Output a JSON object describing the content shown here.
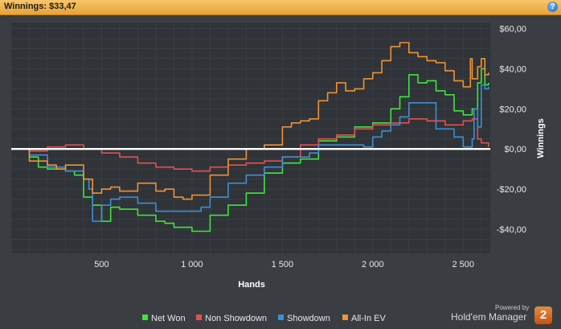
{
  "header": {
    "title": "Winnings: $33,47",
    "help_icon": "help-icon",
    "help_glyph": "?"
  },
  "brand": {
    "powered": "Powered by",
    "name": "Hold'em Manager",
    "badge": "2"
  },
  "colors": {
    "net_won": "#3ee63e",
    "non_showdown": "#e45050",
    "showdown": "#3d8fd6",
    "allin_ev": "#ef9335",
    "zero_line": "#ffffff"
  },
  "chart_data": {
    "type": "line",
    "xlabel": "Hands",
    "ylabel": "Winnings",
    "xlim": [
      0,
      2650
    ],
    "ylim": [
      -52,
      63
    ],
    "x_ticks": [
      500,
      1000,
      1500,
      2000,
      2500
    ],
    "x_tick_labels": [
      "500",
      "1 000",
      "1 500",
      "2 000",
      "2 500"
    ],
    "y_ticks": [
      -40,
      -20,
      0,
      20,
      40,
      60
    ],
    "y_tick_labels": [
      "-$40,00",
      "-$20,00",
      "$0,00",
      "$20,00",
      "$40,00",
      "$60,00"
    ],
    "grid": true,
    "legend_position": "bottom",
    "series": [
      {
        "name": "Net Won",
        "color": "#3ee63e",
        "x": [
          0,
          100,
          150,
          200,
          300,
          350,
          400,
          450,
          500,
          550,
          600,
          700,
          800,
          850,
          900,
          1000,
          1050,
          1100,
          1200,
          1300,
          1400,
          1500,
          1600,
          1700,
          1800,
          1900,
          2000,
          2100,
          2150,
          2200,
          2250,
          2300,
          2350,
          2400,
          2450,
          2500,
          2550,
          2580,
          2600,
          2620,
          2640
        ],
        "y": [
          0,
          -4,
          -9,
          -10,
          -11,
          -13,
          -24,
          -28,
          -36,
          -29,
          -30,
          -33,
          -36,
          -37,
          -39,
          -41,
          -41,
          -33,
          -28,
          -22,
          -12,
          -7,
          -5,
          4,
          6,
          11,
          13,
          20,
          26,
          37,
          33,
          34,
          29,
          27,
          19,
          17,
          20,
          33,
          40,
          32,
          33
        ]
      },
      {
        "name": "Non Showdown",
        "color": "#e45050",
        "x": [
          0,
          100,
          200,
          300,
          400,
          500,
          600,
          700,
          800,
          900,
          1000,
          1100,
          1200,
          1300,
          1400,
          1500,
          1600,
          1700,
          1800,
          1900,
          2000,
          2100,
          2200,
          2300,
          2400,
          2500,
          2550,
          2580,
          2600,
          2640
        ],
        "y": [
          0,
          -1,
          1,
          2,
          0,
          -2,
          -4,
          -7,
          -9,
          -10,
          -11,
          -9,
          -8,
          -7,
          -6,
          -4,
          2,
          5,
          7,
          10,
          12,
          13,
          15,
          14,
          12,
          14,
          15,
          5,
          3,
          1
        ]
      },
      {
        "name": "Showdown",
        "color": "#3d8fd6",
        "x": [
          0,
          100,
          200,
          300,
          400,
          430,
          450,
          500,
          550,
          600,
          700,
          800,
          850,
          900,
          1000,
          1050,
          1100,
          1200,
          1300,
          1400,
          1500,
          1650,
          1700,
          1800,
          1900,
          1950,
          2000,
          2050,
          2100,
          2150,
          2200,
          2250,
          2300,
          2350,
          2400,
          2450,
          2500,
          2520,
          2550,
          2560,
          2580,
          2600,
          2620,
          2640
        ],
        "y": [
          0,
          -3,
          -9,
          -11,
          -15,
          -20,
          -36,
          -28,
          -25,
          -24,
          -27,
          -31,
          -31,
          -31,
          -31,
          -29,
          -24,
          -17,
          -13,
          -9,
          -4,
          -2,
          2,
          2,
          2,
          1,
          6,
          9,
          12,
          16,
          23,
          23,
          23,
          10,
          10,
          6,
          1,
          1,
          5,
          20,
          11,
          32,
          30,
          31
        ]
      },
      {
        "name": "All-In EV",
        "color": "#ef9335",
        "x": [
          0,
          100,
          200,
          250,
          300,
          400,
          450,
          500,
          550,
          600,
          700,
          800,
          850,
          900,
          950,
          1000,
          1100,
          1200,
          1300,
          1400,
          1500,
          1550,
          1600,
          1650,
          1700,
          1750,
          1800,
          1850,
          1900,
          1950,
          2000,
          2050,
          2100,
          2150,
          2200,
          2250,
          2300,
          2350,
          2400,
          2450,
          2500,
          2520,
          2540,
          2550,
          2580,
          2600,
          2620,
          2640
        ],
        "y": [
          0,
          -6,
          -8,
          -10,
          -8,
          -15,
          -22,
          -20,
          -19,
          -21,
          -17,
          -21,
          -20,
          -24,
          -25,
          -23,
          -13,
          -5,
          0,
          2,
          11,
          13,
          14,
          15,
          24,
          28,
          33,
          29,
          30,
          35,
          38,
          44,
          51,
          53,
          48,
          46,
          44,
          43,
          39,
          34,
          31,
          31,
          45,
          35,
          41,
          45,
          37,
          38
        ]
      }
    ]
  }
}
